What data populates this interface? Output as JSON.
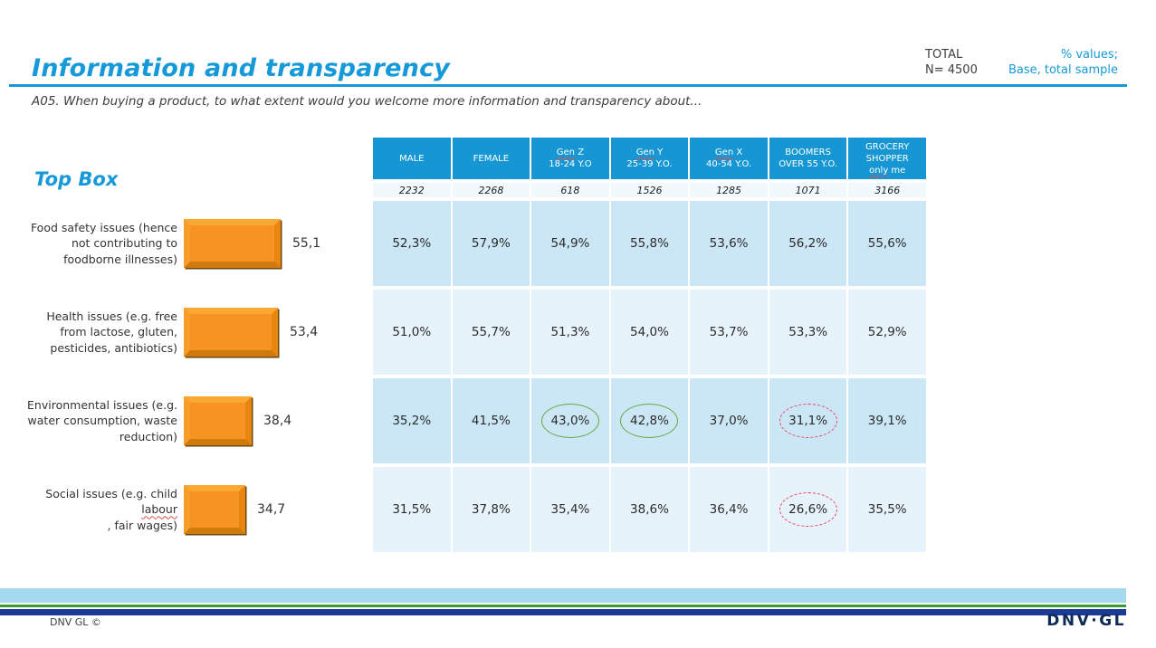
{
  "slide": {
    "title": "Information and transparency",
    "question": "A05. When buying a product, to what extent would you welcome more information and transparency about...",
    "meta": {
      "total_label": "TOTAL",
      "total_n": "N= 4500",
      "values_note": "% values;",
      "base_note": "Base, total sample"
    },
    "footer": {
      "copyright": "DNV GL ©",
      "logo": "DNV·GL"
    }
  },
  "chart": {
    "section_title": "Top Box",
    "bars": [
      {
        "lines": [
          "Food safety issues (hence",
          "not contributing to",
          "foodborne illnesses)"
        ],
        "value": 55.1,
        "value_label": "55,1"
      },
      {
        "lines": [
          "Health issues (e.g. free",
          "from lactose, gluten,",
          "pesticides, antibiotics)"
        ],
        "value": 53.4,
        "value_label": "53,4"
      },
      {
        "lines": [
          "Environmental issues (e.g.",
          "water consumption, waste",
          "reduction)"
        ],
        "value": 38.4,
        "value_label": "38,4"
      },
      {
        "lines": [
          "Social issues (e.g. child"
        ],
        "line2_sq": "labour",
        "line2_rest": ", fair wages)",
        "value": 34.7,
        "value_label": "34,7"
      }
    ]
  },
  "table": {
    "columns": [
      {
        "base": "2232",
        "lines": [
          [
            {
              "t": "MALE"
            }
          ]
        ]
      },
      {
        "base": "2268",
        "lines": [
          [
            {
              "t": "FEMALE"
            }
          ]
        ]
      },
      {
        "base": "618",
        "lines": [
          [
            {
              "t": "Gen",
              "sq": true
            },
            {
              "t": " Z"
            }
          ],
          [
            {
              "t": "18-24 Y.O"
            }
          ]
        ]
      },
      {
        "base": "1526",
        "lines": [
          [
            {
              "t": "Gen",
              "sq": true
            },
            {
              "t": " Y"
            }
          ],
          [
            {
              "t": "25-39 Y.O."
            }
          ]
        ]
      },
      {
        "base": "1285",
        "lines": [
          [
            {
              "t": "Gen",
              "sq": true
            },
            {
              "t": " X"
            }
          ],
          [
            {
              "t": "40-54 Y.O."
            }
          ]
        ]
      },
      {
        "base": "1071",
        "lines": [
          [
            {
              "t": "BOOMERS"
            }
          ],
          [
            {
              "t": "OVER 55 Y.O."
            }
          ]
        ]
      },
      {
        "base": "3166",
        "lines": [
          [
            {
              "t": "GROCERY"
            }
          ],
          [
            {
              "t": "SHOPPER"
            }
          ],
          [
            {
              "t": "only",
              "sq": true
            },
            {
              "t": " me"
            }
          ]
        ]
      }
    ],
    "rows": [
      {
        "cells": [
          "52,3%",
          "57,9%",
          "54,9%",
          "55,8%",
          "53,6%",
          "56,2%",
          "55,6%"
        ]
      },
      {
        "cells": [
          "51,0%",
          "55,7%",
          "51,3%",
          "54,0%",
          "53,7%",
          "53,3%",
          "52,9%"
        ]
      },
      {
        "cells": [
          "35,2%",
          "41,5%",
          "43,0%",
          "42,8%",
          "37,0%",
          "31,1%",
          "39,1%"
        ]
      },
      {
        "cells": [
          "31,5%",
          "37,8%",
          "35,4%",
          "38,6%",
          "36,4%",
          "26,6%",
          "35,5%"
        ]
      }
    ]
  },
  "colors": {
    "accent_blue": "#1699D8",
    "table_header_blue": "#1697D3",
    "row_shade_dark": "#CBE7F5",
    "row_shade_light": "#E7F3FA",
    "bar_orange": "#F79421",
    "highlight_green": "#66A63F",
    "highlight_red": "#EF3E5E",
    "footer_light_blue": "#A5D9EE",
    "footer_green": "#3C9A35",
    "footer_navy": "#1C3B94",
    "logo_navy": "#0E2B57"
  },
  "chart_data": {
    "type": "bar",
    "orientation": "horizontal",
    "title": "Top Box",
    "categories": [
      "Food safety issues (hence not contributing to foodborne illnesses)",
      "Health issues (e.g. free from lactose, gluten, pesticides, antibiotics)",
      "Environmental issues (e.g. water consumption, waste reduction)",
      "Social issues (e.g. child labour, fair wages)"
    ],
    "values": [
      55.1,
      53.4,
      38.4,
      34.7
    ],
    "data_labels": [
      "55,1",
      "53,4",
      "38,4",
      "34,7"
    ],
    "xlim": [
      0,
      60
    ],
    "bar_color": "#F79421",
    "crosstab": {
      "total_n": 4500,
      "columns": [
        "MALE",
        "FEMALE",
        "Gen Z 18-24 Y.O",
        "Gen Y 25-39 Y.O.",
        "Gen X 40-54 Y.O.",
        "BOOMERS OVER 55 Y.O.",
        "GROCERY SHOPPER only me"
      ],
      "bases": [
        2232,
        2268,
        618,
        1526,
        1285,
        1071,
        3166
      ],
      "rows": [
        {
          "category": "Food safety issues (hence not contributing to foodborne illnesses)",
          "values": [
            52.3,
            57.9,
            54.9,
            55.8,
            53.6,
            56.2,
            55.6
          ]
        },
        {
          "category": "Health issues (e.g. free from lactose, gluten, pesticides, antibiotics)",
          "values": [
            51.0,
            55.7,
            51.3,
            54.0,
            53.7,
            53.3,
            52.9
          ]
        },
        {
          "category": "Environmental issues (e.g. water consumption, waste reduction)",
          "values": [
            35.2,
            41.5,
            43.0,
            42.8,
            37.0,
            31.1,
            39.1
          ]
        },
        {
          "category": "Social issues (e.g. child labour, fair wages)",
          "values": [
            31.5,
            37.8,
            35.4,
            38.6,
            36.4,
            26.6,
            35.5
          ]
        }
      ],
      "highlights": [
        {
          "row_index": 2,
          "column": "Gen Z 18-24 Y.O",
          "value": 43.0,
          "style": "green-solid-circle"
        },
        {
          "row_index": 2,
          "column": "Gen Y 25-39 Y.O.",
          "value": 42.8,
          "style": "green-solid-circle"
        },
        {
          "row_index": 2,
          "column": "BOOMERS OVER 55 Y.O.",
          "value": 31.1,
          "style": "red-dashed-circle"
        },
        {
          "row_index": 3,
          "column": "BOOMERS OVER 55 Y.O.",
          "value": 26.6,
          "style": "red-dashed-circle"
        }
      ]
    }
  }
}
